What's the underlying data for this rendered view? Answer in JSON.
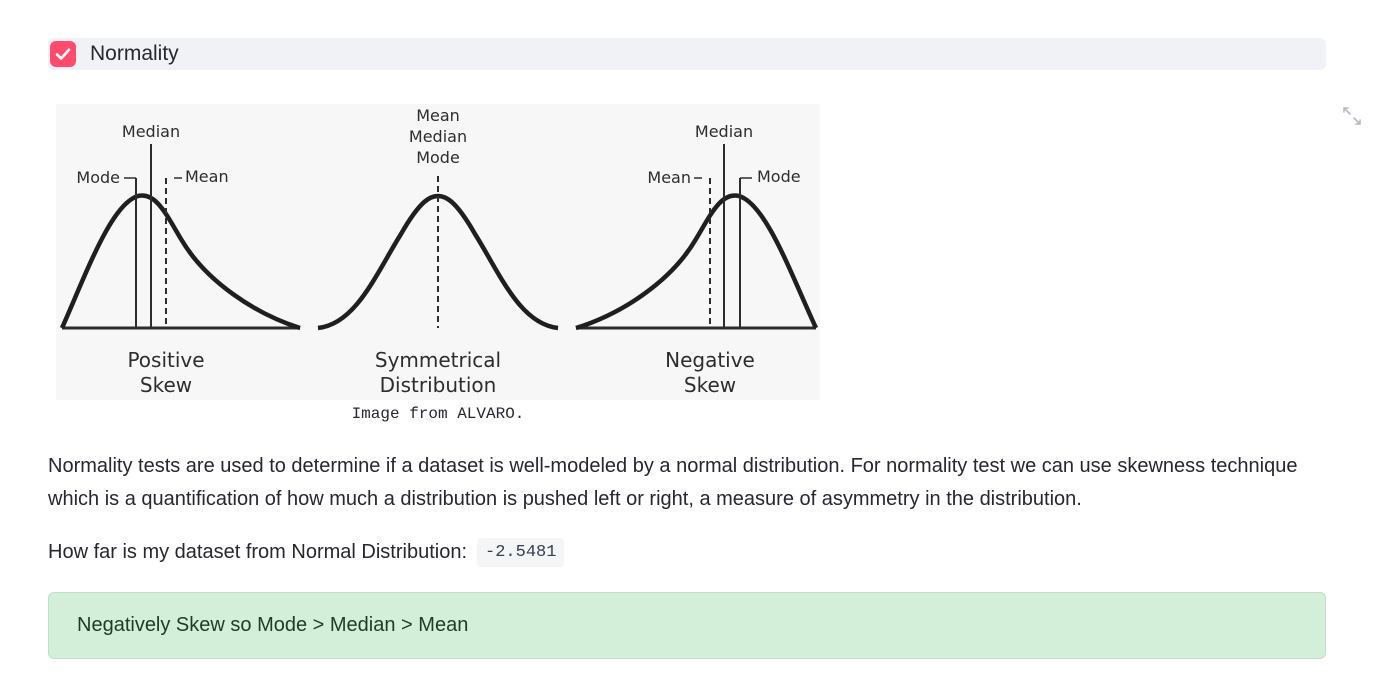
{
  "checkbox": {
    "label": "Normality",
    "checked": true,
    "accent_color": "#ff4b6e",
    "icon": "check-icon"
  },
  "figure": {
    "positive": {
      "label_median": "Median",
      "label_mode": "Mode",
      "label_mean": "Mean",
      "title_line1": "Positive",
      "title_line2": "Skew"
    },
    "symmetrical": {
      "label_mean": "Mean",
      "label_median": "Median",
      "label_mode": "Mode",
      "title_line1": "Symmetrical",
      "title_line2": "Distribution"
    },
    "negative": {
      "label_median": "Median",
      "label_mean": "Mean",
      "label_mode": "Mode",
      "title_line1": "Negative",
      "title_line2": "Skew"
    },
    "caption": "Image from ALVARO.",
    "fullscreen_icon": "expand-icon"
  },
  "description": "Normality tests are used to determine if a dataset is well-modeled by a normal distribution. For normality test we can use skewness technique which is a quantification of how much a distribution is pushed left or right, a measure of asymmetry in the distribution.",
  "distance": {
    "label": "How far is my dataset from Normal Distribution:",
    "value": "-2.5481"
  },
  "result": {
    "message": "Negatively Skew so Mode > Median > Mean",
    "background_color": "#d3eed9"
  }
}
